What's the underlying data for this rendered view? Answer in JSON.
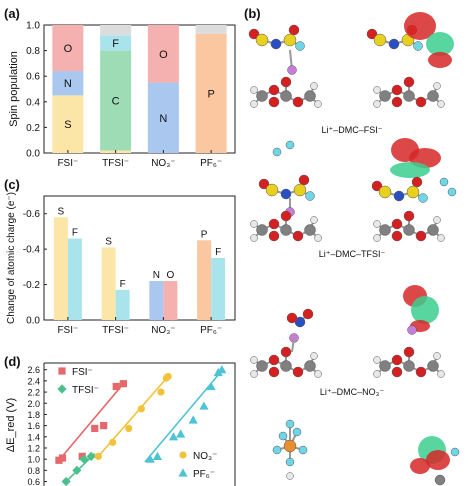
{
  "panels": {
    "a": {
      "label": "(a)"
    },
    "b": {
      "label": "(b)"
    },
    "c": {
      "label": "(c)"
    },
    "d": {
      "label": "(d)"
    }
  },
  "chart_data": [
    {
      "panel": "a",
      "type": "bar",
      "stacked": true,
      "ylabel": "Spin population",
      "ylim": [
        0,
        1.0
      ],
      "yticks": [
        "0.0",
        "0.2",
        "0.4",
        "0.6",
        "0.8",
        "1.0"
      ],
      "categories": [
        "FSI⁻",
        "TFSI⁻",
        "NO₃⁻",
        "PF₆⁻"
      ],
      "stacks": [
        [
          {
            "label": "S",
            "value": 0.45,
            "color": "#fbe6a8"
          },
          {
            "label": "N",
            "value": 0.19,
            "color": "#a9c7ef"
          },
          {
            "label": "O",
            "value": 0.36,
            "color": "#f5b0b0"
          }
        ],
        [
          {
            "label": "",
            "value": 0.02,
            "color": "#fbe6a8"
          },
          {
            "label": "C",
            "value": 0.78,
            "color": "#9ddcb5"
          },
          {
            "label": "F",
            "value": 0.12,
            "color": "#a9e3ec"
          },
          {
            "label": "",
            "value": 0.08,
            "color": "#dddddd"
          }
        ],
        [
          {
            "label": "N",
            "value": 0.55,
            "color": "#a9c7ef"
          },
          {
            "label": "O",
            "value": 0.45,
            "color": "#f5b0b0"
          }
        ],
        [
          {
            "label": "P",
            "value": 0.93,
            "color": "#fbc7a0"
          },
          {
            "label": "",
            "value": 0.07,
            "color": "#dddddd"
          }
        ]
      ]
    },
    {
      "panel": "c",
      "type": "bar",
      "ylabel": "Change of atomic charge (e⁻)",
      "ylim": [
        0,
        -0.7
      ],
      "yticks": [
        "0.0",
        "-0.2",
        "-0.4",
        "-0.6"
      ],
      "categories": [
        "FSI⁻",
        "TFSI⁻",
        "NO₃⁻",
        "PF₆⁻"
      ],
      "groups": [
        {
          "bars": [
            {
              "label": "S",
              "value": -0.58,
              "color": "#fbe6a8"
            },
            {
              "label": "F",
              "value": -0.46,
              "color": "#a9e3ec"
            }
          ]
        },
        {
          "bars": [
            {
              "label": "S",
              "value": -0.41,
              "color": "#fbe6a8"
            },
            {
              "label": "F",
              "value": -0.17,
              "color": "#a9e3ec"
            }
          ]
        },
        {
          "bars": [
            {
              "label": "N",
              "value": -0.22,
              "color": "#a9c7ef"
            },
            {
              "label": "O",
              "value": -0.22,
              "color": "#f5b0b0"
            }
          ]
        },
        {
          "bars": [
            {
              "label": "P",
              "value": -0.45,
              "color": "#fbc7a0"
            },
            {
              "label": "F",
              "value": -0.35,
              "color": "#a9e3ec"
            }
          ]
        }
      ]
    },
    {
      "panel": "d",
      "type": "scatter",
      "ylabel": "ΔE_red (V)",
      "ylim": [
        0.6,
        2.7
      ],
      "yticks": [
        "0.6",
        "0.8",
        "1.0",
        "1.2",
        "1.4",
        "1.6",
        "1.8",
        "2.0",
        "2.2",
        "2.4",
        "2.6"
      ],
      "xlim": [
        0,
        10
      ],
      "series": [
        {
          "name": "FSI⁻",
          "marker": "square",
          "color": "#e5686b",
          "x": [
            0.5,
            0.7,
            1.8,
            2.5,
            3.0,
            3.7,
            4.1
          ],
          "y": [
            0.98,
            1.02,
            1.05,
            1.55,
            1.6,
            2.3,
            2.35
          ]
        },
        {
          "name": "TFSI⁻",
          "marker": "diamond",
          "color": "#4bbf8c",
          "x": [
            0.9,
            1.5,
            1.9,
            2.3
          ],
          "y": [
            0.6,
            0.8,
            1.0,
            1.05
          ]
        },
        {
          "name": "NO₃⁻",
          "marker": "circle",
          "color": "#f2c23a",
          "x": [
            2.7,
            3.5,
            4.4,
            5.1,
            6.2,
            6.5,
            6.6
          ],
          "y": [
            1.05,
            1.3,
            1.55,
            1.9,
            2.2,
            2.45,
            2.48
          ]
        },
        {
          "name": "PF₆⁻",
          "marker": "triangle",
          "color": "#4fc3d6",
          "x": [
            5.6,
            6.0,
            6.9,
            7.3,
            8.0,
            8.6,
            9.0,
            9.4,
            9.6
          ],
          "y": [
            1.0,
            1.05,
            1.4,
            1.45,
            1.7,
            1.95,
            2.3,
            2.55,
            2.6
          ]
        }
      ],
      "fit_lines": [
        {
          "series": "FSI⁻",
          "from": [
            0.5,
            0.98
          ],
          "to": [
            4.1,
            2.35
          ]
        },
        {
          "series": "TFSI⁻",
          "from": [
            0.9,
            0.6
          ],
          "to": [
            2.5,
            1.1
          ]
        },
        {
          "series": "NO₃⁻",
          "from": [
            2.7,
            1.05
          ],
          "to": [
            6.6,
            2.48
          ]
        },
        {
          "series": "PF₆⁻",
          "from": [
            5.3,
            0.95
          ],
          "to": [
            9.7,
            2.62
          ]
        }
      ]
    }
  ],
  "molecule_captions": [
    "Li⁺–DMC–FSI⁻",
    "Li⁺–DMC–TFSI⁻",
    "Li⁺–DMC–NO₃⁻"
  ],
  "atom_colors": {
    "C": "#808080",
    "H": "#e8e8e8",
    "O": "#d42020",
    "Li": "#c77dd8",
    "F": "#6fd6e6",
    "S": "#e8d020",
    "N": "#2a4fc0",
    "P": "#e89030"
  },
  "orbital_colors": {
    "positive": "#d62828",
    "negative": "#3ccf8f"
  }
}
